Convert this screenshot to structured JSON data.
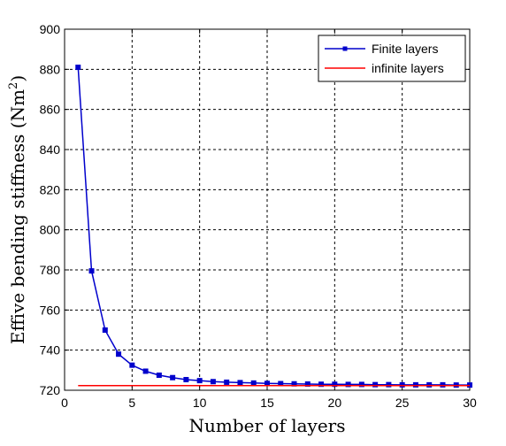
{
  "chart_data": {
    "type": "line",
    "title": "",
    "xlabel": "Number of layers",
    "ylabel": "Effive bending stiffness (Nm²)",
    "ylabel_main": "Effive bending stiffness (Nm",
    "ylabel_sup": "2",
    "ylabel_close": ")",
    "xlim": [
      0,
      30
    ],
    "ylim": [
      720,
      900
    ],
    "x_ticks": [
      0,
      5,
      10,
      15,
      20,
      25,
      30
    ],
    "y_ticks": [
      720,
      740,
      760,
      780,
      800,
      820,
      840,
      860,
      880,
      900
    ],
    "grid": true,
    "legend_position": "top-right",
    "series": [
      {
        "name": "Finite layers",
        "color": "#0000cc",
        "marker": "square",
        "x": [
          1,
          2,
          3,
          4,
          5,
          6,
          7,
          8,
          9,
          10,
          11,
          12,
          13,
          14,
          15,
          16,
          17,
          18,
          19,
          20,
          21,
          22,
          23,
          24,
          25,
          26,
          27,
          28,
          29,
          30
        ],
        "y": [
          881,
          779.5,
          750,
          738,
          732.5,
          729.5,
          727.5,
          726.3,
          725.3,
          724.8,
          724.3,
          724,
          723.8,
          723.6,
          723.4,
          723.3,
          723.2,
          723.1,
          723,
          723,
          722.9,
          722.9,
          722.8,
          722.8,
          722.7,
          722.7,
          722.7,
          722.7,
          722.6,
          722.6
        ]
      },
      {
        "name": "infinite layers",
        "color": "#ff0000",
        "marker": "none",
        "x": [
          1,
          30
        ],
        "y": [
          722.3,
          722.3
        ]
      }
    ]
  }
}
